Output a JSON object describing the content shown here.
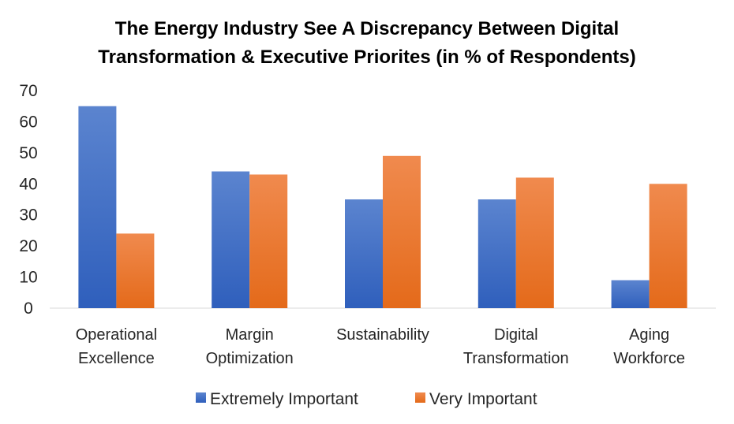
{
  "chart_data": {
    "type": "bar",
    "title_lines": [
      "The Energy Industry See A Discrepancy Between Digital",
      "Transformation & Executive Priorites (in % of Respondents)"
    ],
    "categories": [
      [
        "Operational",
        "Excellence"
      ],
      [
        "Margin",
        "Optimization"
      ],
      [
        "Sustainability"
      ],
      [
        "Digital",
        "Transformation"
      ],
      [
        "Aging",
        "Workforce"
      ]
    ],
    "series": [
      {
        "name": "Extremely Important",
        "color": "#4472C4",
        "values": [
          65,
          44,
          35,
          35,
          9
        ]
      },
      {
        "name": "Very Important",
        "color": "#ED7D31",
        "values": [
          24,
          43,
          49,
          42,
          40
        ]
      }
    ],
    "xlabel": "",
    "ylabel": "",
    "ylim": [
      0,
      70
    ],
    "yticks": [
      0,
      10,
      20,
      30,
      40,
      50,
      60,
      70
    ],
    "grid": false,
    "legend_position": "bottom"
  }
}
